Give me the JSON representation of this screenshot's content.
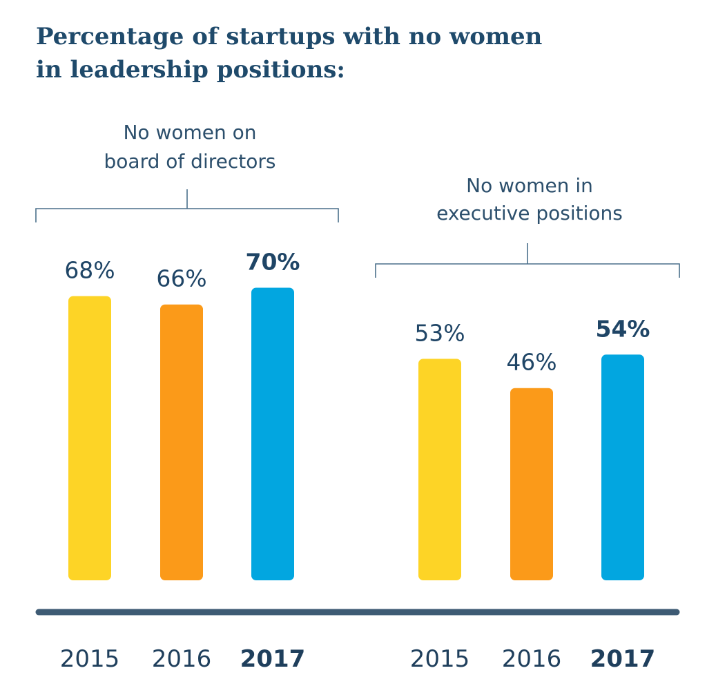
{
  "chart_data": {
    "type": "bar",
    "title": "Percentage of startups with no women in leadership positions:",
    "title_lines": [
      "Percentage of startups with no women",
      "in leadership positions:"
    ],
    "colors": {
      "2015": "#fdd426",
      "2016": "#fb9a19",
      "2017": "#02a6e0",
      "axis": "#3e5b74",
      "title": "#1f4a6b"
    },
    "ylim": [
      0,
      100
    ],
    "grid": false,
    "groups": [
      {
        "label_lines": [
          "No women on",
          "board of directors"
        ],
        "categories": [
          "2015",
          "2016",
          "2017"
        ],
        "values": [
          68,
          66,
          70
        ],
        "value_labels": [
          "68%",
          "66%",
          "70%"
        ],
        "highlight": [
          false,
          false,
          true
        ]
      },
      {
        "label_lines": [
          "No women in",
          "executive positions"
        ],
        "categories": [
          "2015",
          "2016",
          "2017"
        ],
        "values": [
          53,
          46,
          54
        ],
        "value_labels": [
          "53%",
          "46%",
          "54%"
        ],
        "highlight": [
          false,
          false,
          true
        ]
      }
    ]
  }
}
